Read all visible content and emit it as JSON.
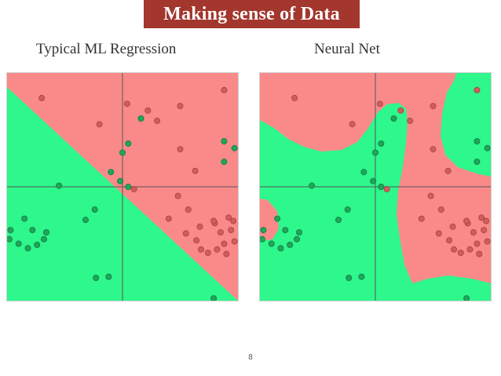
{
  "slide": {
    "title": "Making sense of Data",
    "page_number": "8"
  },
  "colors": {
    "banner": "#a3362d",
    "region_red": "#fa8a8a",
    "region_green": "#2ef78c",
    "point_red": "#d15c5c",
    "point_green": "#1fa65a",
    "axis_line": "#555555"
  },
  "panels": [
    {
      "label": "Typical ML Regression",
      "boundary": "linear"
    },
    {
      "label": "Neural Net",
      "boundary": "non-linear"
    }
  ],
  "points": {
    "red": [
      [
        -0.7,
        0.78
      ],
      [
        -0.2,
        0.55
      ],
      [
        0.04,
        0.73
      ],
      [
        0.22,
        0.67
      ],
      [
        0.3,
        0.58
      ],
      [
        0.5,
        0.71
      ],
      [
        0.88,
        0.85
      ],
      [
        0.63,
        0.14
      ],
      [
        0.5,
        0.33
      ],
      [
        0.1,
        -0.02
      ],
      [
        0.48,
        -0.08
      ],
      [
        0.57,
        -0.2
      ],
      [
        0.4,
        -0.28
      ],
      [
        0.67,
        -0.35
      ],
      [
        0.8,
        -0.32
      ],
      [
        0.92,
        -0.27
      ],
      [
        0.96,
        -0.3
      ],
      [
        0.94,
        -0.38
      ],
      [
        0.97,
        -0.48
      ],
      [
        0.88,
        -0.5
      ],
      [
        0.82,
        -0.55
      ],
      [
        0.74,
        -0.58
      ],
      [
        0.68,
        -0.55
      ],
      [
        0.64,
        -0.47
      ],
      [
        0.79,
        -0.3
      ],
      [
        0.85,
        -0.4
      ],
      [
        0.55,
        -0.41
      ],
      [
        0.9,
        -0.59
      ]
    ],
    "green": [
      [
        0.05,
        0.38
      ],
      [
        0.16,
        0.6
      ],
      [
        0.88,
        0.4
      ],
      [
        0.88,
        0.22
      ],
      [
        0.97,
        0.34
      ],
      [
        -0.02,
        0.05
      ],
      [
        0.0,
        0.3
      ],
      [
        -0.55,
        0.01
      ],
      [
        -0.97,
        -0.38
      ],
      [
        -0.98,
        -0.46
      ],
      [
        -0.9,
        -0.5
      ],
      [
        -0.82,
        -0.54
      ],
      [
        -0.74,
        -0.51
      ],
      [
        -0.68,
        -0.46
      ],
      [
        -0.66,
        -0.4
      ],
      [
        -0.78,
        -0.38
      ],
      [
        -0.85,
        -0.28
      ],
      [
        -0.24,
        -0.2
      ],
      [
        -0.32,
        -0.29
      ],
      [
        -0.23,
        -0.8
      ],
      [
        -0.12,
        -0.79
      ],
      [
        0.79,
        -0.98
      ],
      [
        -0.1,
        0.13
      ],
      [
        0.05,
        -0.0
      ]
    ]
  }
}
